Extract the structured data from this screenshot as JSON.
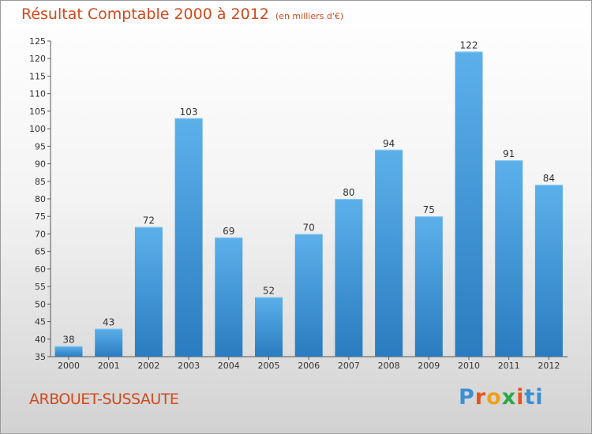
{
  "colors": {
    "title": "#d04a1e",
    "bar_top": "#5cb0ea",
    "bar_bottom": "#2a7cc0",
    "axis": "#555555",
    "logo": [
      "#3b8fd6",
      "#e8531c",
      "#f0a01a",
      "#2aa84a",
      "#e8531c",
      "#3b8fd6"
    ]
  },
  "place_name": "ARBOUET-SUSSAUTE",
  "logo_text": "Proxiti",
  "chart_data": {
    "type": "bar",
    "title": "Résultat Comptable 2000 à 2012",
    "subtitle": "(en milliers d'€)",
    "xlabel": "",
    "ylabel": "",
    "categories": [
      "2000",
      "2001",
      "2002",
      "2003",
      "2004",
      "2005",
      "2006",
      "2007",
      "2008",
      "2009",
      "2010",
      "2011",
      "2012"
    ],
    "values": [
      38,
      43,
      72,
      103,
      69,
      52,
      70,
      80,
      94,
      75,
      122,
      91,
      84
    ],
    "ylim": [
      35,
      125
    ],
    "yticks": [
      35,
      40,
      45,
      50,
      55,
      60,
      65,
      70,
      75,
      80,
      85,
      90,
      95,
      100,
      105,
      110,
      115,
      120,
      125
    ],
    "grid": false,
    "data_labels": true
  }
}
